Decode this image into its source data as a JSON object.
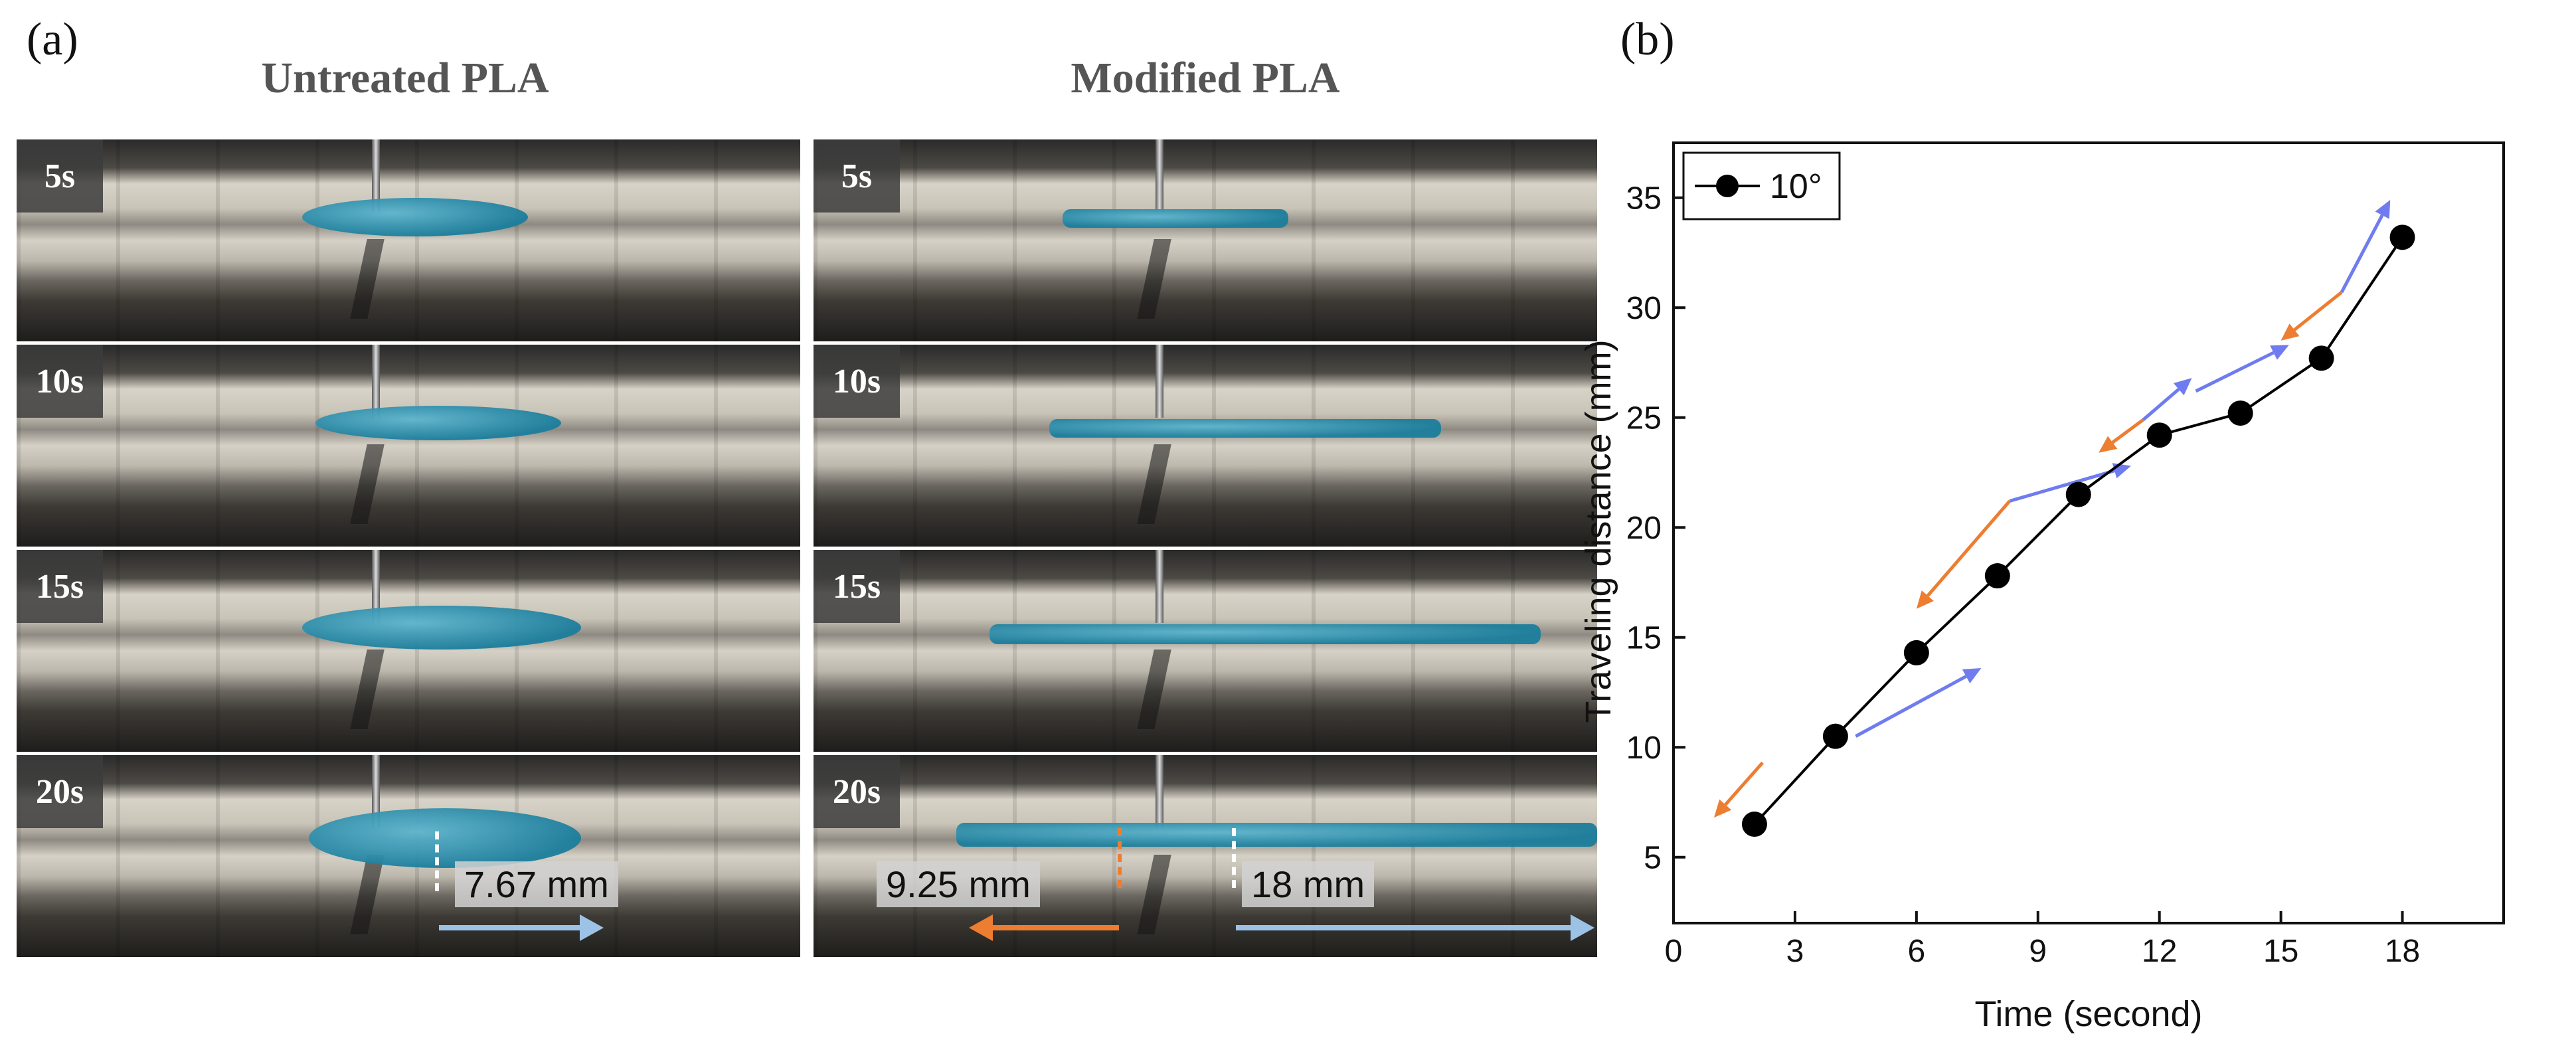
{
  "panel_a": {
    "label": "(a)",
    "left_title": "Untreated PLA",
    "right_title": "Modified PLA",
    "time_labels": [
      "5s",
      "10s",
      "15s",
      "20s"
    ],
    "measurements": {
      "untreated": "7.67 mm",
      "modified_left": "9.25 mm",
      "modified_right": "18 mm"
    },
    "colors": {
      "blue_arrow": "#9cc3e6",
      "orange_arrow": "#ed7d31",
      "liquid": "#2a8fae"
    }
  },
  "panel_b": {
    "label": "(b)"
  },
  "chart_data": {
    "type": "line",
    "title": "",
    "xlabel": "Time (second)",
    "ylabel": "Traveling distance (mm)",
    "xlim": [
      0,
      20.5
    ],
    "ylim": [
      2,
      37.5
    ],
    "xticks": [
      0,
      3,
      6,
      9,
      12,
      15,
      18
    ],
    "yticks": [
      5,
      10,
      15,
      20,
      25,
      30,
      35
    ],
    "legend_position": "top-left",
    "series": [
      {
        "name": "10°",
        "color": "#000000",
        "x": [
          2,
          4,
          6,
          8,
          10,
          12,
          14,
          16,
          18
        ],
        "y": [
          6.5,
          10.5,
          14.3,
          17.8,
          21.5,
          24.2,
          25.2,
          27.7,
          33.2
        ]
      }
    ],
    "annotations": [
      {
        "type": "arrow",
        "color": "#ed7d31",
        "from": [
          2.2,
          9.3
        ],
        "to": [
          1.0,
          6.8
        ]
      },
      {
        "type": "arrow",
        "color": "#6f7cf0",
        "from": [
          4.5,
          10.5
        ],
        "to": [
          7.6,
          13.6
        ]
      },
      {
        "type": "arrow",
        "color": "#ed7d31",
        "from": [
          8.3,
          21.2
        ],
        "to": [
          6.0,
          16.3
        ]
      },
      {
        "type": "arrow",
        "color": "#6f7cf0",
        "from": [
          8.3,
          21.2
        ],
        "to": [
          11.3,
          22.8
        ]
      },
      {
        "type": "arrow",
        "color": "#ed7d31",
        "from": [
          11.6,
          24.9
        ],
        "to": [
          10.5,
          23.4
        ]
      },
      {
        "type": "arrow",
        "color": "#6f7cf0",
        "from": [
          11.6,
          24.9
        ],
        "to": [
          12.8,
          26.8
        ]
      },
      {
        "type": "arrow",
        "color": "#6f7cf0",
        "from": [
          12.9,
          26.2
        ],
        "to": [
          15.2,
          28.3
        ]
      },
      {
        "type": "arrow",
        "color": "#ed7d31",
        "from": [
          16.5,
          30.7
        ],
        "to": [
          15.0,
          28.5
        ]
      },
      {
        "type": "arrow",
        "color": "#6f7cf0",
        "from": [
          16.5,
          30.7
        ],
        "to": [
          17.7,
          34.9
        ]
      }
    ]
  }
}
